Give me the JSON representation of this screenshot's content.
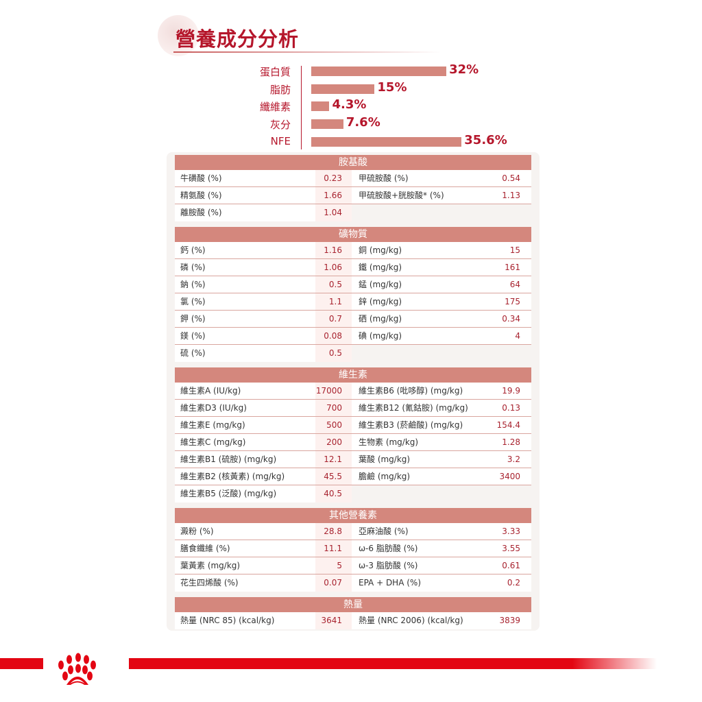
{
  "title": "營養成分分析",
  "chart_data": {
    "type": "bar",
    "orientation": "horizontal",
    "categories": [
      "蛋白質",
      "脂肪",
      "纖維素",
      "灰分",
      "NFE"
    ],
    "values": [
      32,
      15,
      4.3,
      7.6,
      35.6
    ],
    "value_labels": [
      "32%",
      "15%",
      "4.3%",
      "7.6%",
      "35.6%"
    ],
    "bar_color": "#d4877d",
    "label_color": "#b5162b"
  },
  "sections": [
    {
      "title": "胺基酸",
      "rows": [
        [
          "牛磺酸 (%)",
          "0.23",
          "甲硫胺酸 (%)",
          "0.54"
        ],
        [
          "精氨酸 (%)",
          "1.66",
          "甲硫胺酸+胱胺酸* (%)",
          "1.13"
        ],
        [
          "離胺酸 (%)",
          "1.04",
          "",
          ""
        ]
      ]
    },
    {
      "title": "礦物質",
      "rows": [
        [
          "鈣 (%)",
          "1.16",
          "銅 (mg/kg)",
          "15"
        ],
        [
          "磷 (%)",
          "1.06",
          "鐵 (mg/kg)",
          "161"
        ],
        [
          "鈉 (%)",
          "0.5",
          "錳 (mg/kg)",
          "64"
        ],
        [
          "氯 (%)",
          "1.1",
          "鋅 (mg/kg)",
          "175"
        ],
        [
          "鉀 (%)",
          "0.7",
          "硒 (mg/kg)",
          "0.34"
        ],
        [
          "鎂 (%)",
          "0.08",
          "碘 (mg/kg)",
          "4"
        ],
        [
          "硫 (%)",
          "0.5",
          "",
          ""
        ]
      ]
    },
    {
      "title": "維生素",
      "rows": [
        [
          "維生素A (IU/kg)",
          "17000",
          "維生素B6 (吡哆醇) (mg/kg)",
          "19.9"
        ],
        [
          "維生素D3 (IU/kg)",
          "700",
          "維生素B12 (氰鈷胺) (mg/kg)",
          "0.13"
        ],
        [
          "維生素E (mg/kg)",
          "500",
          "維生素B3 (菸鹼酸) (mg/kg)",
          "154.4"
        ],
        [
          "維生素C (mg/kg)",
          "200",
          "生物素 (mg/kg)",
          "1.28"
        ],
        [
          "維生素B1 (硫胺) (mg/kg)",
          "12.1",
          "葉酸 (mg/kg)",
          "3.2"
        ],
        [
          "維生素B2 (核黃素) (mg/kg)",
          "45.5",
          "膽鹼 (mg/kg)",
          "3400"
        ],
        [
          "維生素B5 (泛酸) (mg/kg)",
          "40.5",
          "",
          ""
        ]
      ]
    },
    {
      "title": "其他營養素",
      "rows": [
        [
          "澱粉 (%)",
          "28.8",
          "亞麻油酸 (%)",
          "3.33"
        ],
        [
          "膳食纖維 (%)",
          "11.1",
          "ω-6 脂肪酸 (%)",
          "3.55"
        ],
        [
          "葉黃素 (mg/kg)",
          "5",
          "ω-3 脂肪酸 (%)",
          "0.61"
        ],
        [
          "花生四烯酸 (%)",
          "0.07",
          "EPA + DHA (%)",
          "0.2"
        ]
      ]
    },
    {
      "title": "熱量",
      "rows": [
        [
          "熱量 (NRC 85) (kcal/kg)",
          "3641",
          "熱量 (NRC 2006) (kcal/kg)",
          "3839"
        ]
      ]
    }
  ],
  "brand_color": "#e30613",
  "logo": "royal-canin-crown-logo"
}
